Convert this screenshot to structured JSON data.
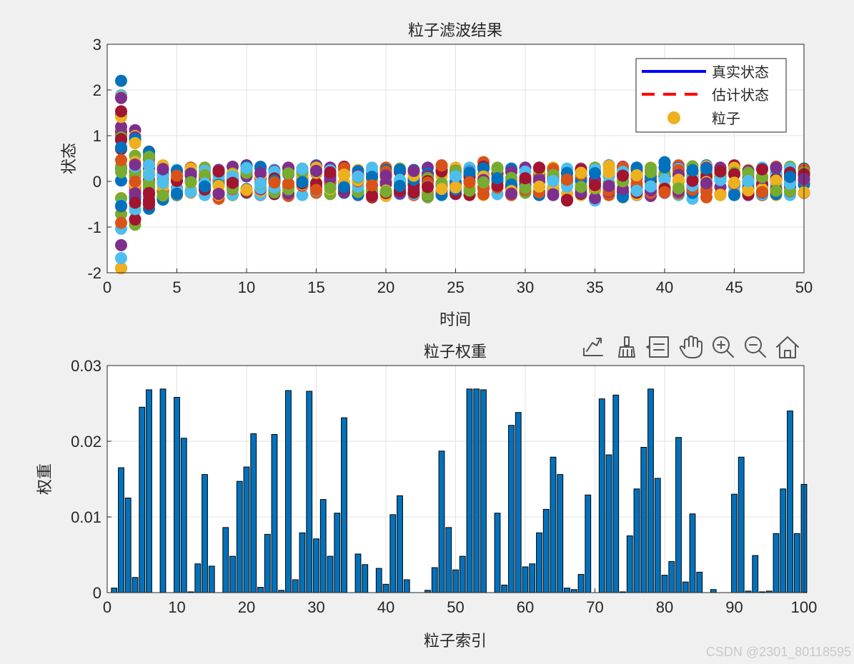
{
  "watermark": "CSDN @2301_80118595",
  "toolbar": {
    "icons": [
      "export-icon",
      "brush-icon",
      "datatip-icon",
      "pan-hand-icon",
      "zoom-in-icon",
      "zoom-out-icon",
      "home-icon"
    ]
  },
  "colors": {
    "figure_bg": "#f0f0f0",
    "axes_bg": "#ffffff",
    "grid": "#e3e3e3",
    "bar_fill": "#0072bd",
    "true_state": "#0000ff",
    "estimate": "#ff0000",
    "particle_palette": [
      "#0072bd",
      "#d95319",
      "#edb120",
      "#7e2f8e",
      "#77ac30",
      "#4dbeee",
      "#a2142f"
    ]
  },
  "chart_data": [
    {
      "type": "scatter",
      "title": "粒子滤波结果",
      "xlabel": "时间",
      "ylabel": "状态",
      "xlim": [
        0,
        50
      ],
      "ylim": [
        -2,
        3
      ],
      "xticks": [
        "0",
        "5",
        "10",
        "15",
        "20",
        "25",
        "30",
        "35",
        "40",
        "45",
        "50"
      ],
      "yticks": [
        "-2",
        "-1",
        "0",
        "1",
        "2",
        "3"
      ],
      "grid": true,
      "legend": {
        "position": "top-right",
        "entries": [
          {
            "label": "真实状态",
            "style": "solid-line",
            "color": "#0000ff"
          },
          {
            "label": "估计状态",
            "style": "dashed-line",
            "color": "#ff0000"
          },
          {
            "label": "粒子",
            "style": "marker",
            "color": "#edb120"
          }
        ]
      },
      "particle_spread": {
        "x": [
          1,
          2,
          3,
          4,
          5,
          6,
          7,
          8,
          9,
          10,
          11,
          12,
          13,
          14,
          15,
          16,
          17,
          18,
          19,
          20,
          21,
          22,
          23,
          24,
          25,
          26,
          27,
          28,
          29,
          30,
          31,
          32,
          33,
          34,
          35,
          36,
          37,
          38,
          39,
          40,
          41,
          42,
          43,
          44,
          45,
          46,
          47,
          48,
          49,
          50
        ],
        "max": [
          2.2,
          1.12,
          0.65,
          0.35,
          0.25,
          0.3,
          0.3,
          0.25,
          0.32,
          0.35,
          0.32,
          0.25,
          0.3,
          0.28,
          0.35,
          0.3,
          0.32,
          0.25,
          0.3,
          0.3,
          0.28,
          0.25,
          0.3,
          0.35,
          0.3,
          0.3,
          0.42,
          0.3,
          0.28,
          0.3,
          0.3,
          0.3,
          0.28,
          0.28,
          0.3,
          0.35,
          0.32,
          0.3,
          0.3,
          0.42,
          0.35,
          0.33,
          0.35,
          0.3,
          0.35,
          0.25,
          0.3,
          0.32,
          0.32,
          0.28
        ],
        "min": [
          -1.9,
          -0.95,
          -0.6,
          -0.4,
          -0.3,
          -0.25,
          -0.3,
          -0.38,
          -0.3,
          -0.25,
          -0.3,
          -0.28,
          -0.32,
          -0.3,
          -0.25,
          -0.28,
          -0.25,
          -0.3,
          -0.35,
          -0.32,
          -0.28,
          -0.3,
          -0.35,
          -0.3,
          -0.28,
          -0.3,
          -0.3,
          -0.28,
          -0.3,
          -0.25,
          -0.3,
          -0.3,
          -0.42,
          -0.3,
          -0.42,
          -0.3,
          -0.35,
          -0.3,
          -0.32,
          -0.25,
          -0.3,
          -0.38,
          -0.35,
          -0.3,
          -0.3,
          -0.3,
          -0.3,
          -0.3,
          -0.3,
          -0.25
        ]
      }
    },
    {
      "type": "bar",
      "title": "粒子权重",
      "xlabel": "粒子索引",
      "ylabel": "权重",
      "xlim": [
        0,
        100
      ],
      "ylim": [
        0,
        0.03
      ],
      "xticks": [
        "0",
        "10",
        "20",
        "30",
        "40",
        "50",
        "60",
        "70",
        "80",
        "90",
        "100"
      ],
      "yticks": [
        "0",
        "0.01",
        "0.02",
        "0.03"
      ],
      "grid": true,
      "categories": [
        1,
        2,
        3,
        4,
        5,
        6,
        7,
        8,
        9,
        10,
        11,
        12,
        13,
        14,
        15,
        16,
        17,
        18,
        19,
        20,
        21,
        22,
        23,
        24,
        25,
        26,
        27,
        28,
        29,
        30,
        31,
        32,
        33,
        34,
        35,
        36,
        37,
        38,
        39,
        40,
        41,
        42,
        43,
        44,
        45,
        46,
        47,
        48,
        49,
        50,
        51,
        52,
        53,
        54,
        55,
        56,
        57,
        58,
        59,
        60,
        61,
        62,
        63,
        64,
        65,
        66,
        67,
        68,
        69,
        70,
        71,
        72,
        73,
        74,
        75,
        76,
        77,
        78,
        79,
        80,
        81,
        82,
        83,
        84,
        85,
        86,
        87,
        88,
        89,
        90,
        91,
        92,
        93,
        94,
        95,
        96,
        97,
        98,
        99,
        100
      ],
      "values": [
        0.0006,
        0.0165,
        0.0125,
        0.002,
        0.0245,
        0.0268,
        0,
        0.0269,
        0,
        0.0258,
        0.0204,
        0.0001,
        0.0038,
        0.0156,
        0.0035,
        0,
        0.0086,
        0.0048,
        0.0147,
        0.0166,
        0.021,
        0.0007,
        0.0077,
        0.0209,
        0.0003,
        0.0267,
        0.0017,
        0.0079,
        0.0266,
        0.0071,
        0.0123,
        0.0048,
        0.0105,
        0.0231,
        0,
        0.0051,
        0.0037,
        0,
        0.0032,
        0.0011,
        0.0103,
        0.0128,
        0.0017,
        0,
        0,
        0.0003,
        0.0033,
        0.0187,
        0.0086,
        0.003,
        0.0048,
        0.0269,
        0.0269,
        0.0268,
        0,
        0.0105,
        0.001,
        0.0221,
        0.0238,
        0.0034,
        0.0038,
        0.0079,
        0.011,
        0.0179,
        0.0156,
        0.0006,
        0.0004,
        0.0024,
        0.0129,
        0,
        0.0256,
        0.0182,
        0.0261,
        0.0001,
        0.0075,
        0.0137,
        0.0192,
        0.0269,
        0.0151,
        0.0023,
        0.0041,
        0.0205,
        0.0014,
        0.0104,
        0.0027,
        0,
        0.0004,
        0,
        0,
        0.013,
        0.0179,
        0.0002,
        0.0049,
        0.0001,
        0.0002,
        0.0078,
        0.0137,
        0.024,
        0.0078,
        0.0143
      ]
    }
  ]
}
